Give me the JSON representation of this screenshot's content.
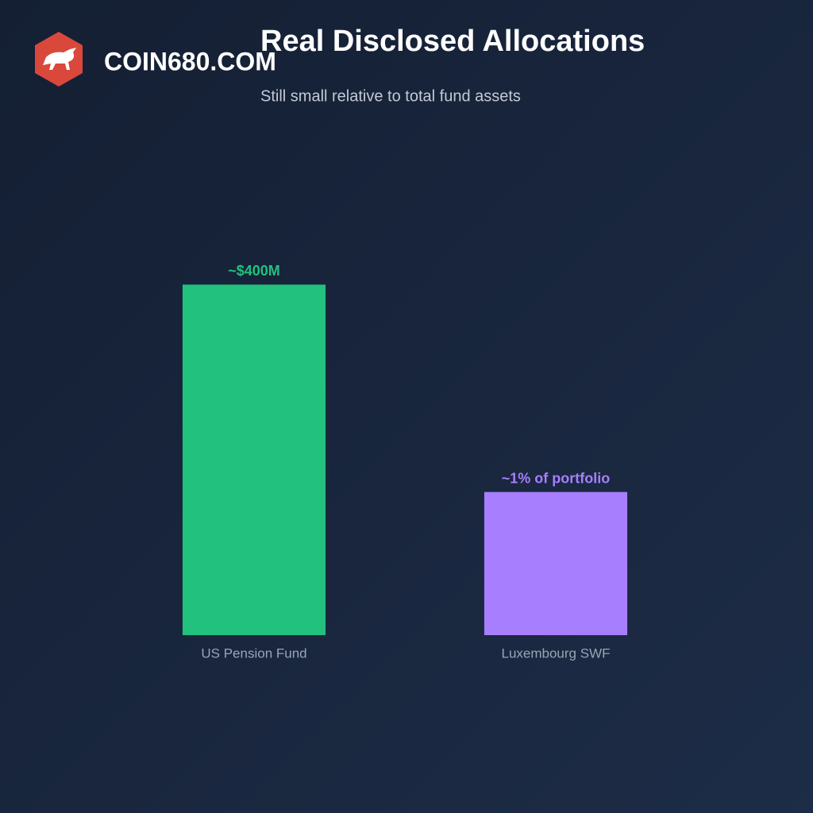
{
  "brand": "COIN680.COM",
  "chart_data": {
    "type": "bar",
    "title": "Real Disclosed Allocations",
    "subtitle": "Still small relative to total fund assets",
    "categories": [
      "US Pension Fund",
      "Luxembourg SWF"
    ],
    "values": [
      400,
      1
    ],
    "value_labels": [
      "~$400M",
      "~1% of portfolio"
    ],
    "colors": [
      "#22c17e",
      "#a77ffe"
    ],
    "log_scale": true,
    "ylim": [
      0.016,
      60000
    ],
    "grid": false
  }
}
